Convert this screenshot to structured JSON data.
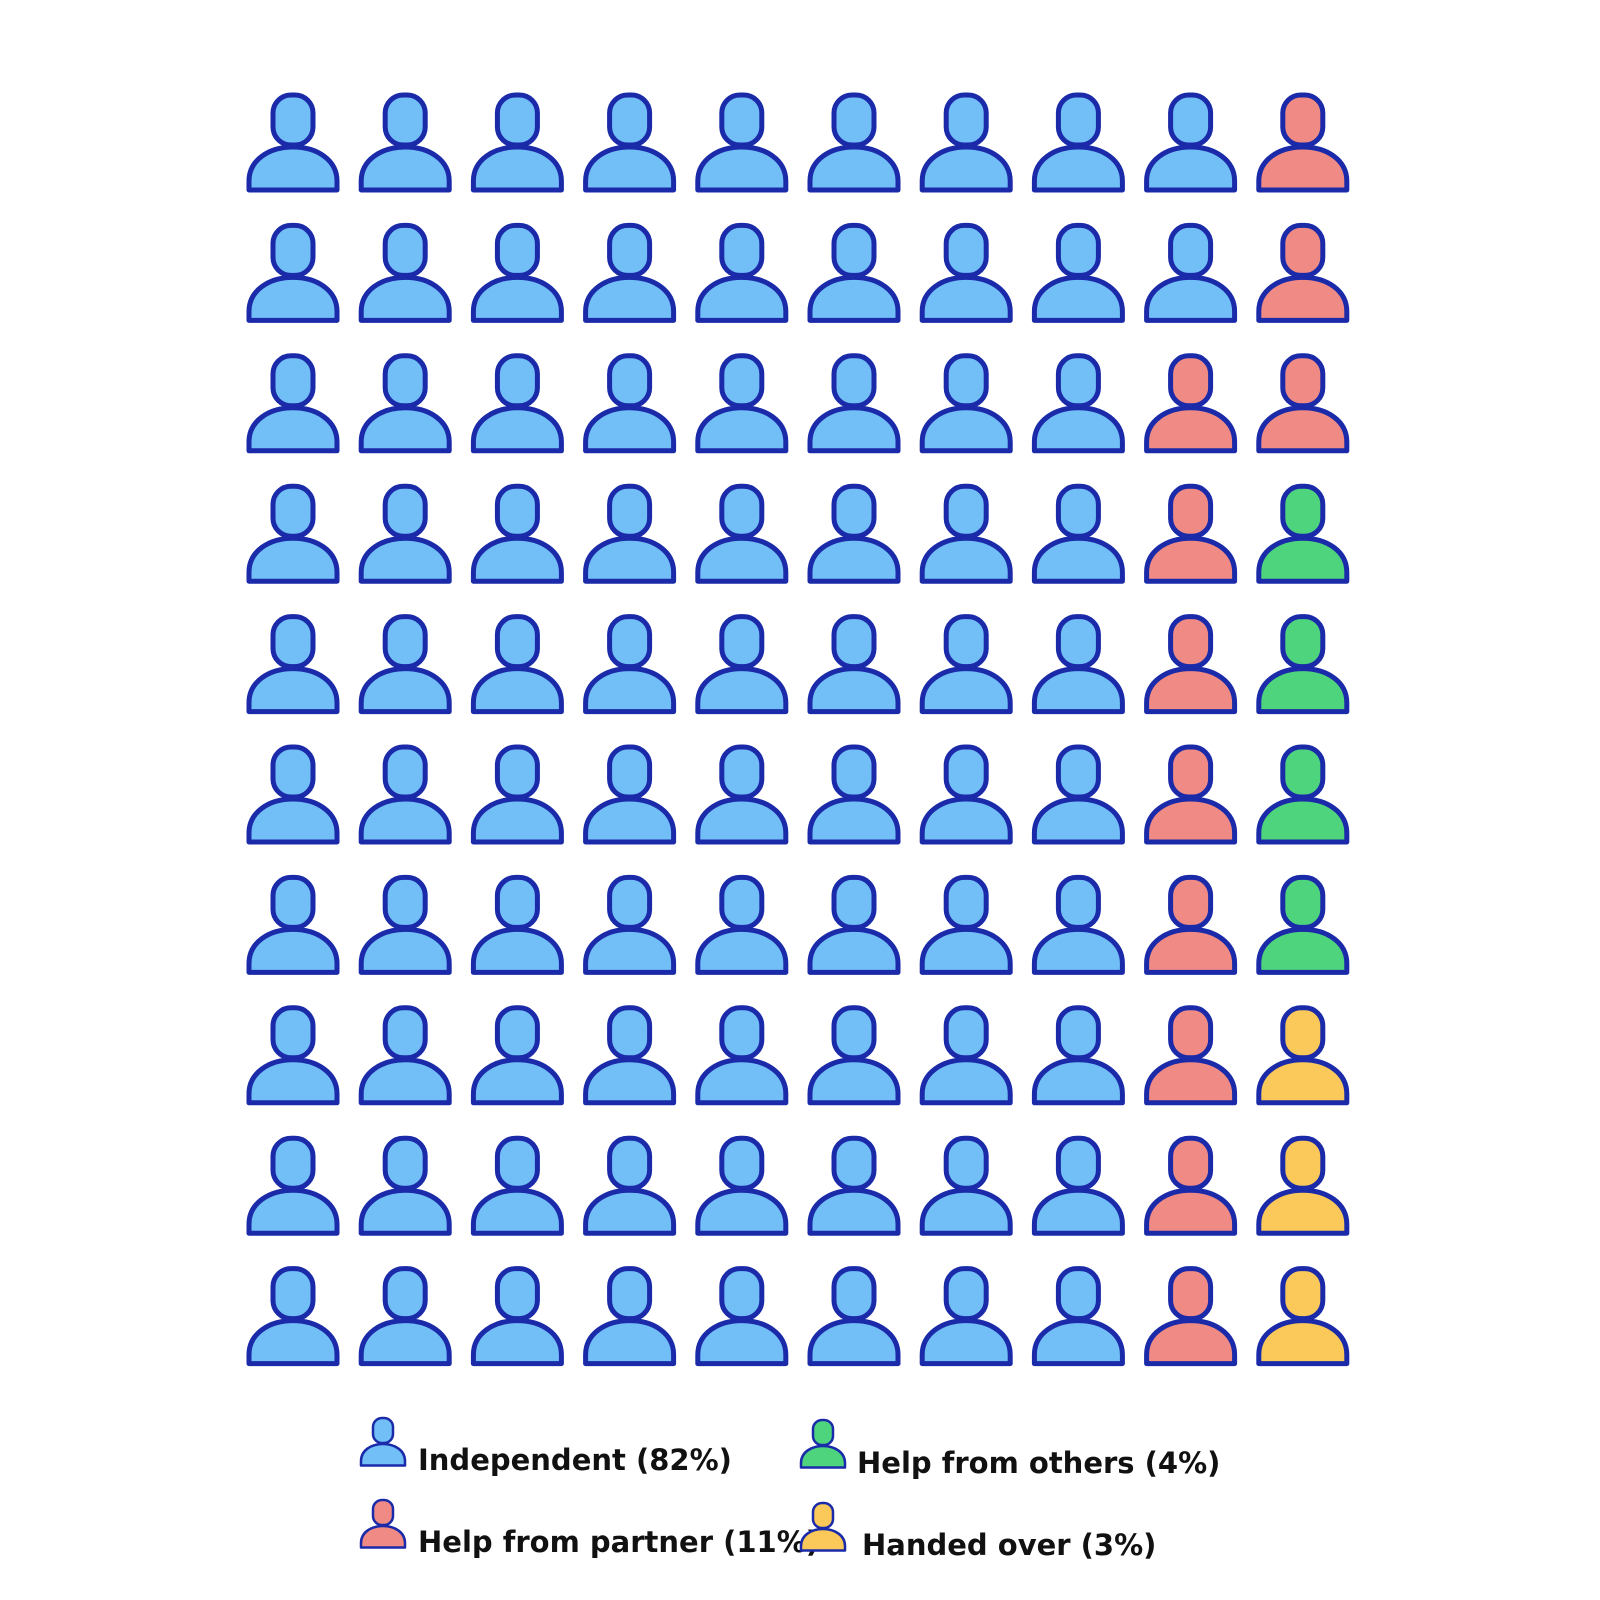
{
  "chart_data": {
    "type": "pictogram",
    "title": "",
    "rows": 10,
    "columns": 10,
    "total_icons": 100,
    "icon": "person-icon",
    "outline_color": "#1a2aa8",
    "series": [
      {
        "name": "Independent (82%)",
        "value": 82,
        "color": "#72bff8",
        "column_counts": [
          10,
          10,
          10,
          10,
          10,
          10,
          10,
          10,
          2,
          0
        ]
      },
      {
        "name": "Help from partner (11%)",
        "value": 11,
        "color": "#f08a85",
        "column_counts": [
          0,
          0,
          0,
          0,
          0,
          0,
          0,
          0,
          8,
          3
        ]
      },
      {
        "name": "Help from others (4%)",
        "value": 4,
        "color": "#4fd47e",
        "column_counts": [
          0,
          0,
          0,
          0,
          0,
          0,
          0,
          0,
          0,
          4
        ]
      },
      {
        "name": "Handed over (3%)",
        "value": 3,
        "color": "#fbc95a",
        "column_counts": [
          0,
          0,
          0,
          0,
          0,
          0,
          0,
          0,
          0,
          3
        ]
      }
    ],
    "legend_position": "bottom"
  }
}
